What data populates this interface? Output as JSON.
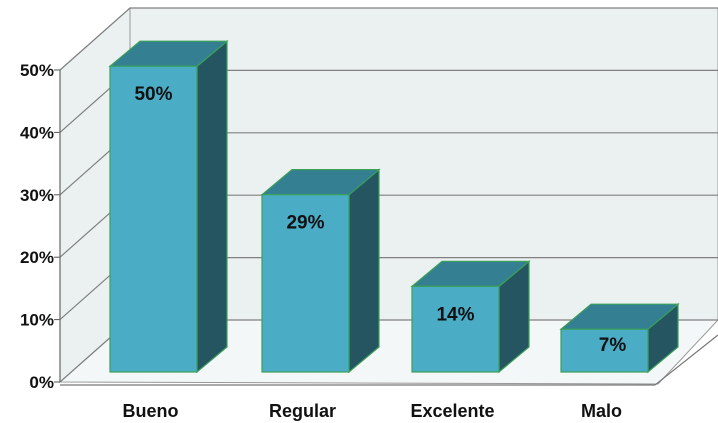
{
  "chart_data": {
    "type": "bar",
    "style": "3d",
    "title": "",
    "xlabel": "",
    "ylabel": "",
    "categories": [
      "Bueno",
      "Regular",
      "Excelente",
      "Malo"
    ],
    "values": [
      50,
      29,
      14,
      7
    ],
    "data_labels": [
      "50%",
      "29%",
      "14%",
      "7%"
    ],
    "yticks": [
      "0%",
      "10%",
      "20%",
      "30%",
      "40%",
      "50%"
    ],
    "ylim": [
      0,
      50
    ],
    "grid": true,
    "legend": "none",
    "colors": {
      "bar_front": "#4bacc6",
      "bar_side": "#255561",
      "bar_top": "#347f92",
      "bar_edge": "#3aa05a",
      "gridline": "#808080",
      "wall": "#ebf1f1"
    }
  }
}
